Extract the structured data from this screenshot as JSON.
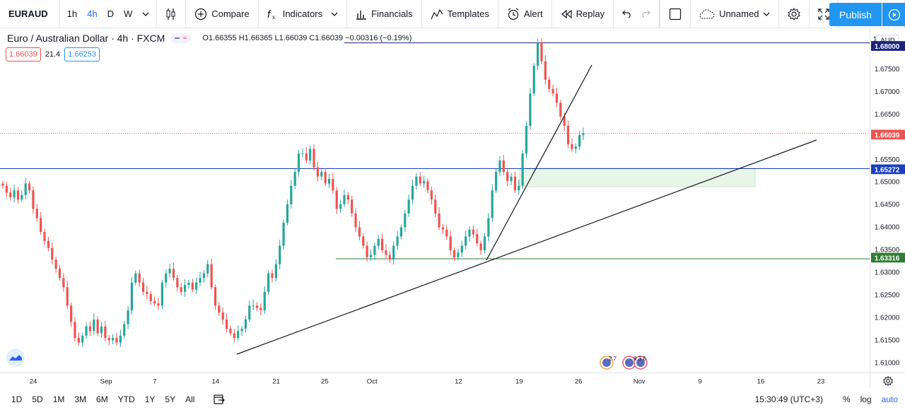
{
  "toolbar": {
    "symbol": "EURAUD",
    "intervals": [
      "1h",
      "4h",
      "D",
      "W"
    ],
    "active_interval": "4h",
    "compare_label": "Compare",
    "indicators_label": "Indicators",
    "financials_label": "Financials",
    "templates_label": "Templates",
    "alert_label": "Alert",
    "replay_label": "Replay",
    "layout_name": "Unnamed",
    "publish_label": "Publish"
  },
  "legend": {
    "title": "Euro / Australian Dollar · 4h · FXCM",
    "ohlc": "O1.66355 H1.66365 L1.66039 C1.66039 −0.00316 (−0.19%)",
    "bid": "1.66039",
    "spread": "21.4",
    "ask": "1.66253"
  },
  "price_scale": {
    "currency": "AUD",
    "top_tick": "1.",
    "ticks": [
      "1.67500",
      "1.67000",
      "1.66500",
      "1.65500",
      "1.65000",
      "1.64500",
      "1.64000",
      "1.63500",
      "1.63000",
      "1.62500",
      "1.62000",
      "1.61500",
      "1.61000"
    ],
    "labels": [
      {
        "text": "1.68000",
        "color": "#1a237e"
      },
      {
        "text": "1.66039",
        "color": "#ef5350"
      },
      {
        "text": "1.65272",
        "color": "#1a3fbf"
      },
      {
        "text": "1.63316",
        "color": "#2e7d32"
      }
    ]
  },
  "time_scale": {
    "ticks": [
      "24",
      "Sep",
      "7",
      "14",
      "21",
      "25",
      "Oct",
      "12",
      "19",
      "26",
      "Nov",
      "9",
      "16",
      "23"
    ]
  },
  "events": {
    "first": "2 7",
    "second": "8 3 6"
  },
  "bottom": {
    "ranges": [
      "1D",
      "5D",
      "1M",
      "3M",
      "6M",
      "YTD",
      "1Y",
      "5Y",
      "All"
    ],
    "clock": "15:30:49 (UTC+3)",
    "percent": "%",
    "log": "log",
    "auto": "auto"
  },
  "colors": {
    "up": "#26a69a",
    "down": "#ef5350",
    "accent": "#2196f3"
  },
  "chart_data": {
    "type": "candlestick",
    "title": "Euro / Australian Dollar · 4h · FXCM",
    "ylim": [
      1.6085,
      1.683
    ],
    "close_series": [
      1.649,
      1.6475,
      1.6465,
      1.648,
      1.646,
      1.647,
      1.6495,
      1.648,
      1.644,
      1.642,
      1.639,
      1.637,
      1.6355,
      1.633,
      1.631,
      1.629,
      1.627,
      1.623,
      1.6195,
      1.616,
      1.615,
      1.6165,
      1.6185,
      1.6175,
      1.62,
      1.617,
      1.6185,
      1.616,
      1.6155,
      1.616,
      1.615,
      1.6165,
      1.619,
      1.622,
      1.628,
      1.63,
      1.628,
      1.626,
      1.6255,
      1.624,
      1.6235,
      1.623,
      1.628,
      1.63,
      1.631,
      1.629,
      1.627,
      1.626,
      1.6275,
      1.628,
      1.6265,
      1.628,
      1.629,
      1.63,
      1.632,
      1.627,
      1.623,
      1.6215,
      1.62,
      1.618,
      1.617,
      1.616,
      1.6175,
      1.618,
      1.62,
      1.623,
      1.623,
      1.6225,
      1.622,
      1.626,
      1.63,
      1.629,
      1.632,
      1.636,
      1.641,
      1.645,
      1.649,
      1.652,
      1.656,
      1.656,
      1.6545,
      1.657,
      1.653,
      1.651,
      1.652,
      1.6495,
      1.6505,
      1.648,
      1.644,
      1.645,
      1.647,
      1.646,
      1.643,
      1.64,
      1.638,
      1.636,
      1.6335,
      1.634,
      1.636,
      1.6375,
      1.635,
      1.634,
      1.633,
      1.636,
      1.638,
      1.64,
      1.643,
      1.646,
      1.649,
      1.651,
      1.6495,
      1.65,
      1.648,
      1.646,
      1.643,
      1.64,
      1.6395,
      1.638,
      1.635,
      1.6335,
      1.6345,
      1.636,
      1.638,
      1.6395,
      1.6385,
      1.6365,
      1.635,
      1.638,
      1.642,
      1.648,
      1.652,
      1.6545,
      1.652,
      1.65,
      1.651,
      1.648,
      1.649,
      1.656,
      1.662,
      1.669,
      1.675,
      1.68,
      1.676,
      1.672,
      1.67,
      1.669,
      1.667,
      1.664,
      1.662,
      1.658,
      1.657,
      1.6575,
      1.66,
      1.6604
    ],
    "lines": [
      {
        "kind": "horizontal",
        "price": 1.68,
        "color": "#1a237e"
      },
      {
        "kind": "horizontal",
        "price": 1.65272,
        "color": "#1a3fbf"
      },
      {
        "kind": "horizontal",
        "price": 1.63316,
        "color": "#2e7d32"
      },
      {
        "kind": "horizontal",
        "price": 1.66039,
        "color": "#ef5350",
        "style": "dotted"
      },
      {
        "kind": "trendline",
        "color": "#131722"
      },
      {
        "kind": "trendline",
        "color": "#131722"
      }
    ],
    "zone": {
      "from_price": 1.6528,
      "to_price": 1.6488,
      "color": "#e8f5e9"
    }
  }
}
